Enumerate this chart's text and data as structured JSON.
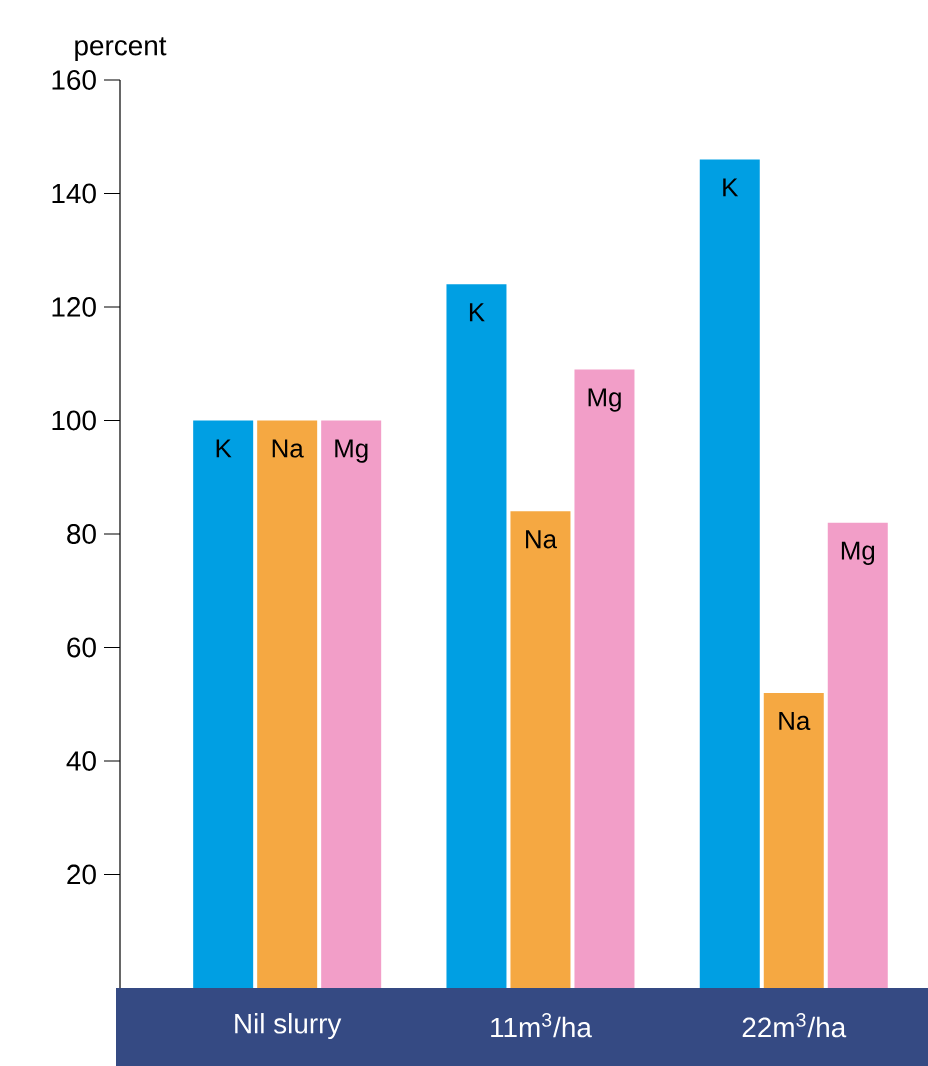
{
  "chart_data": {
    "type": "bar",
    "ylabel": "percent",
    "categories": [
      "Nil slurry",
      "11m$^{3}$/ha",
      "22m$^{3}$/ha"
    ],
    "series": [
      {
        "name": "K",
        "color": "#009fe3",
        "values": [
          100,
          124,
          146
        ]
      },
      {
        "name": "Na",
        "color": "#f5a842",
        "values": [
          100,
          84,
          52
        ]
      },
      {
        "name": "Mg",
        "color": "#f29ec8",
        "values": [
          100,
          109,
          82
        ]
      }
    ],
    "ylim": [
      0,
      160
    ],
    "yticks": [
      20,
      40,
      60,
      80,
      100,
      120,
      140,
      160
    ]
  }
}
